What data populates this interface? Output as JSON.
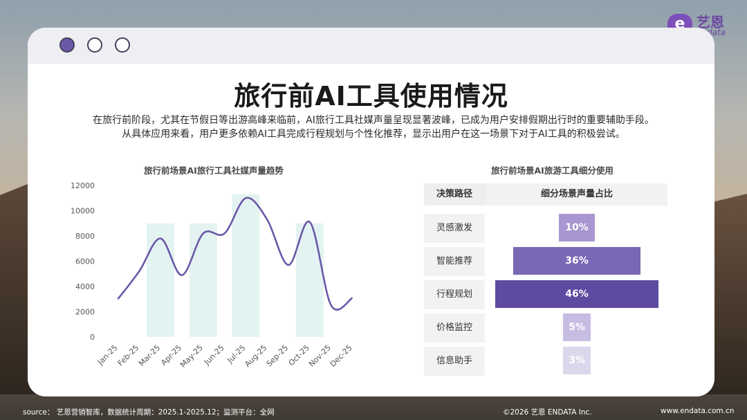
{
  "logo": {
    "cn": "艺恩",
    "en": "endata"
  },
  "title": "旅行前AI工具使用情况",
  "intro": [
    "在旅行前阶段，尤其在节假日等出游高峰来临前，AI旅行工具社媒声量呈现显著波峰，已成为用户安排假期出行时的重要辅助手段。",
    "从具体应用来看，用户更多依赖AI工具完成行程规划与个性化推荐，显示出用户在这一场景下对于AI工具的积极尝试。"
  ],
  "colors": {
    "line": "#6b58a8",
    "highlight": "#e3f3f2",
    "bar_dark": "#6b58a8",
    "bar_light": "#d9d2ea"
  },
  "chart_data": [
    {
      "type": "line",
      "title": "旅行前场景AI旅行工具社媒声量趋势",
      "categories": [
        "Jan-25",
        "Feb-25",
        "Mar-25",
        "Apr-25",
        "May-25",
        "Jun-25",
        "Jul-25",
        "Aug-25",
        "Sep-25",
        "Oct-25",
        "Nov-25",
        "Dec-25"
      ],
      "series": [
        {
          "values": [
            3000,
            5200,
            7800,
            4900,
            8200,
            8200,
            11000,
            9300,
            5700,
            9100,
            2500,
            3100
          ]
        }
      ],
      "highlighted_categories": [
        "Mar-25",
        "May-25",
        "Jul-25",
        "Oct-25"
      ],
      "highlight_value": 9000,
      "highlight_value_jul": 11300,
      "yticks": [
        "12000",
        "10000",
        "8000",
        "6000",
        "4000",
        "2000",
        "0"
      ],
      "ylim": [
        0,
        12000
      ],
      "grid": false
    },
    {
      "type": "bar",
      "orientation": "horizontal-centered",
      "title": "旅行前场景AI旅游工具细分使用",
      "column_headers": [
        "决策路径",
        "细分场景声量占比"
      ],
      "categories": [
        "灵感激发",
        "智能推荐",
        "行程规划",
        "价格监控",
        "信息助手"
      ],
      "values": [
        10,
        36,
        46,
        5,
        3
      ],
      "value_labels": [
        "10%",
        "36%",
        "46%",
        "5%",
        "3%"
      ],
      "bar_colors": [
        "#a796d0",
        "#7a67b5",
        "#5e4aa0",
        "#c7bde3",
        "#ddd7ec"
      ]
    }
  ],
  "footer": {
    "source": "source： 艺恩营销智库，数据统计周期：2025.1-2025.12；监测平台：全网",
    "copyright": "©2026  艺恩 ENDATA Inc.",
    "website": "www.endata.com.cn"
  }
}
